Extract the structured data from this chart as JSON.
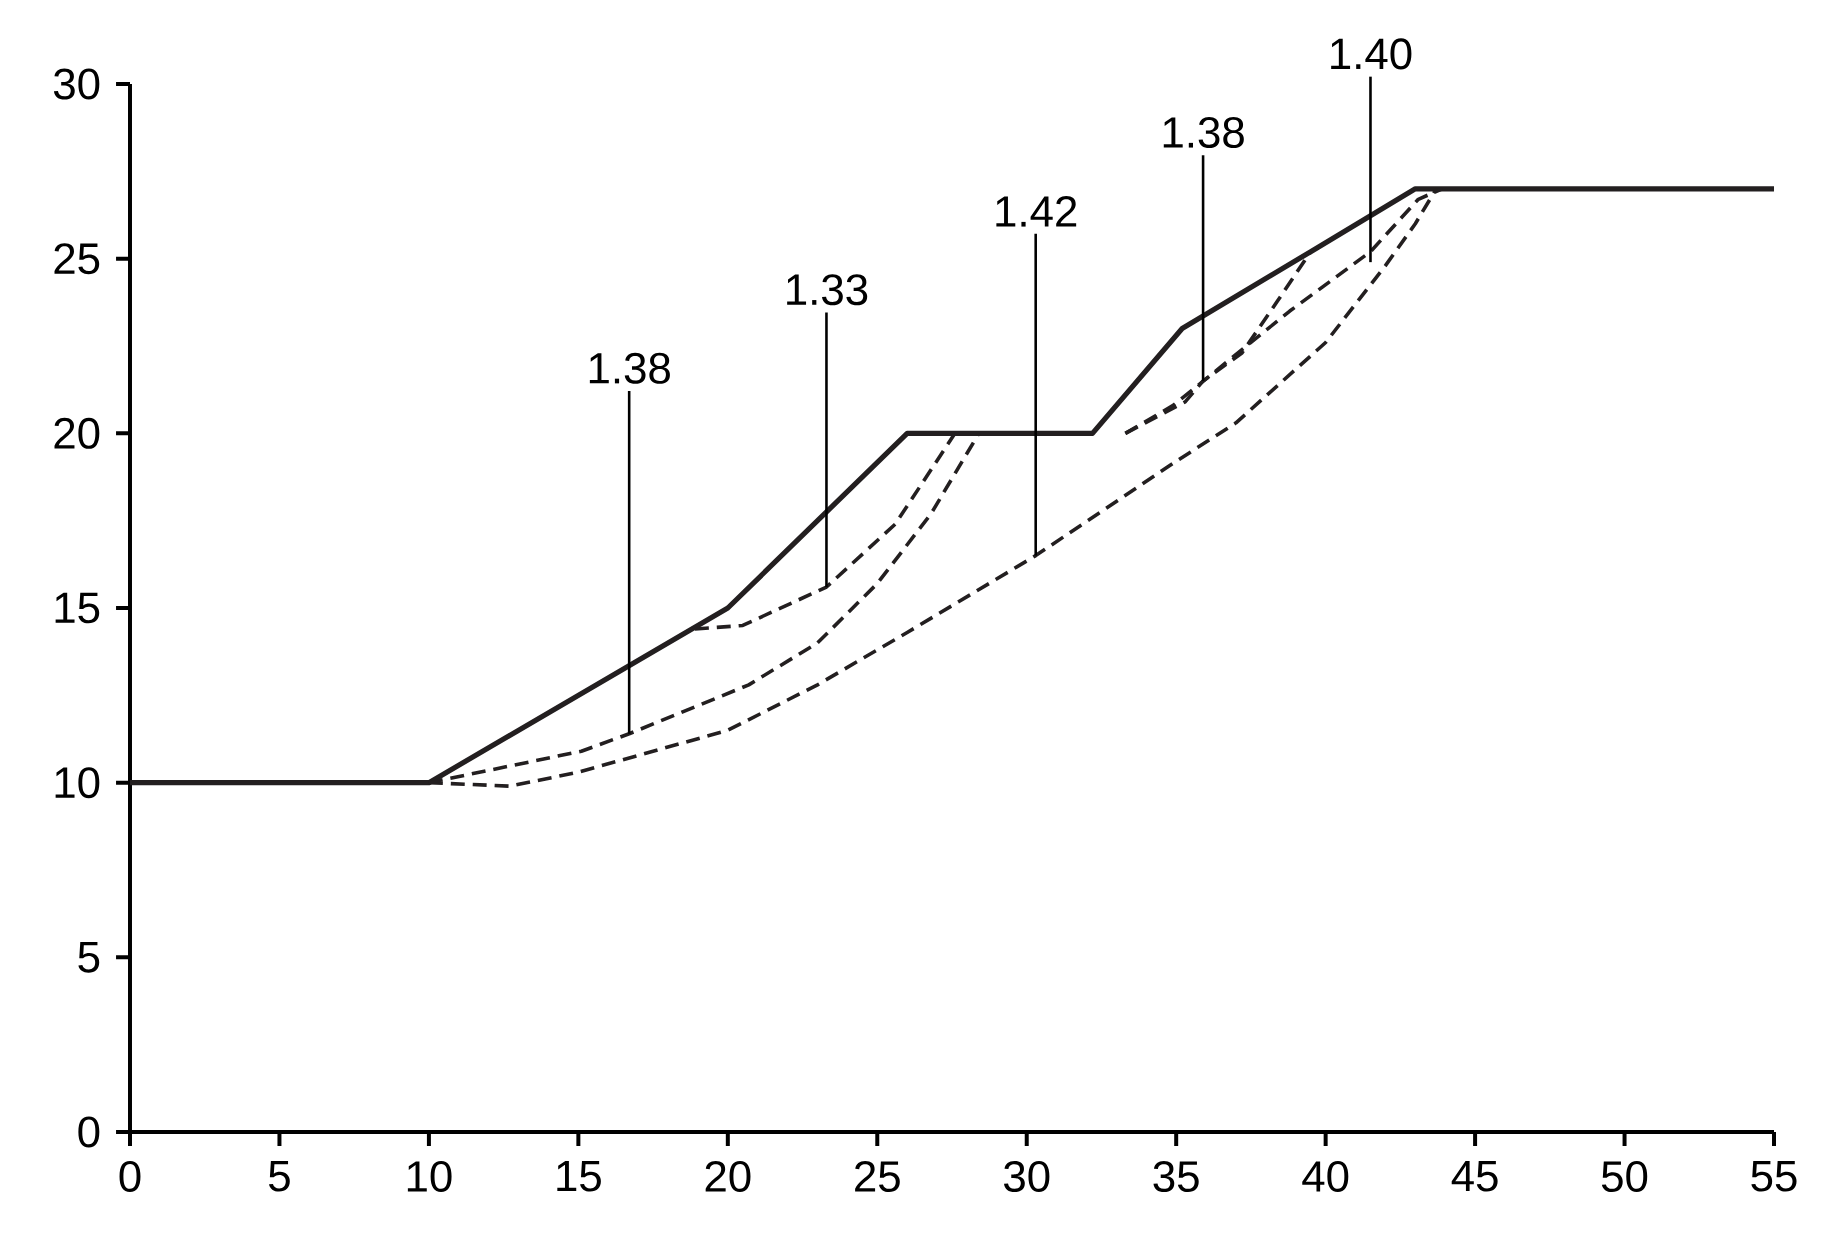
{
  "chart_data": {
    "type": "line",
    "xlim": [
      0,
      55
    ],
    "ylim": [
      0,
      30
    ],
    "xticks": [
      0,
      5,
      10,
      15,
      20,
      25,
      30,
      35,
      40,
      45,
      50,
      55
    ],
    "yticks": [
      0,
      5,
      10,
      15,
      20,
      25,
      30
    ],
    "series": [
      {
        "color": "#231f20",
        "line_style": "solid",
        "x": [
          0,
          10,
          20,
          26,
          32.2,
          35.2,
          39.5,
          43,
          55
        ],
        "values": [
          10,
          10,
          15,
          20,
          20,
          23,
          25.2,
          27,
          27
        ]
      },
      {
        "color": "#231f20",
        "line_style": "dashed",
        "x": [
          10,
          12.7,
          15,
          20,
          23,
          26,
          30.3,
          35,
          37,
          40,
          42,
          43,
          43.7
        ],
        "values": [
          10,
          9.9,
          10.3,
          11.5,
          12.8,
          14.3,
          16.5,
          19.2,
          20.3,
          22.6,
          24.8,
          26,
          27
        ]
      },
      {
        "color": "#231f20",
        "line_style": "dashed",
        "x": [
          10,
          15.1,
          16.7,
          20.7,
          23,
          25,
          26.8,
          28.4
        ],
        "values": [
          10,
          10.9,
          11.4,
          12.8,
          14,
          15.7,
          17.7,
          20
        ]
      },
      {
        "color": "#231f20",
        "line_style": "dashed",
        "x": [
          18.9,
          20.5,
          23.3,
          25.6,
          27.6
        ],
        "values": [
          14.4,
          14.5,
          15.6,
          17.4,
          20
        ]
      },
      {
        "color": "#231f20",
        "line_style": "dashed",
        "x": [
          33.3,
          35.3,
          35.9,
          37.2,
          38.4,
          39.5
        ],
        "values": [
          20,
          20.9,
          21.5,
          22.3,
          23.8,
          25.2
        ]
      },
      {
        "color": "#231f20",
        "line_style": "dashed",
        "x": [
          33.3,
          34.9,
          38.8,
          41.5,
          43.1,
          43.9
        ],
        "values": [
          20,
          20.8,
          23.5,
          25.2,
          26.7,
          27
        ]
      }
    ],
    "annotations": [
      {
        "text": "1.38",
        "x": 16.7,
        "y": 11.4
      },
      {
        "text": "1.33",
        "x": 23.3,
        "y": 15.6
      },
      {
        "text": "1.42",
        "x": 30.3,
        "y": 16.5
      },
      {
        "text": "1.38",
        "x": 35.9,
        "y": 21.5
      },
      {
        "text": "1.40",
        "x": 41.5,
        "y": 24.9
      }
    ]
  }
}
